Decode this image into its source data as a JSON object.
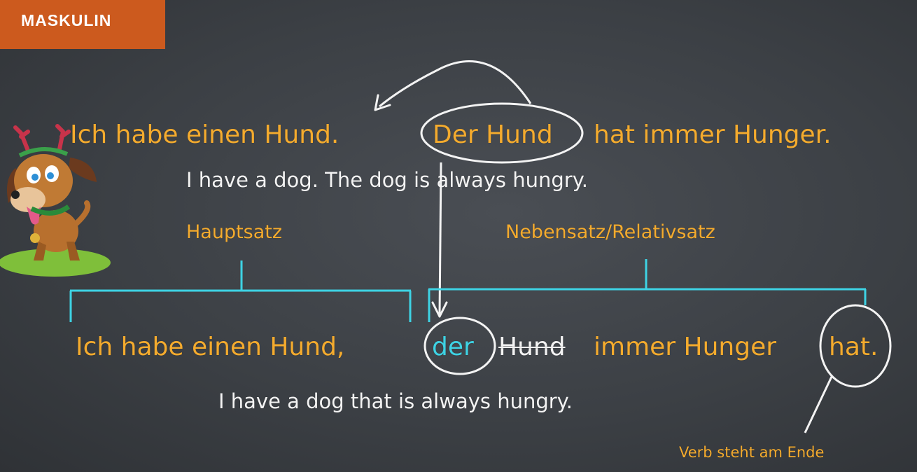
{
  "tag": {
    "label": "MASKULIN"
  },
  "line1": {
    "german_main": "Ich habe einen Hund.",
    "german_circled": "Der Hund",
    "german_rest": "hat immer Hunger.",
    "english": "I have a dog. The dog is always hungry."
  },
  "labels": {
    "hauptsatz": "Hauptsatz",
    "nebensatz": "Nebensatz/Relativsatz"
  },
  "line2": {
    "german_main": "Ich habe einen Hund,",
    "pronoun": "der",
    "struck": "Hund",
    "middle": "immer Hunger",
    "verb": "hat.",
    "english": "I have a dog that is always hungry."
  },
  "note": {
    "verb_end": "Verb steht am Ende"
  },
  "colors": {
    "orange": "#f4ab2e",
    "cyan": "#3ed3e4",
    "tag": "#cc5a1e",
    "board": "#3c4045"
  }
}
